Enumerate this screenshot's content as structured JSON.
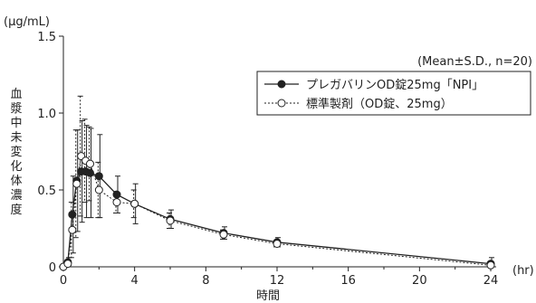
{
  "chart_data": {
    "type": "line",
    "ylabel": "血漿中未変化体濃度",
    "yunit": "(μg/mL)",
    "xlabel": "時間",
    "xunit": "(hr)",
    "xlim": [
      0,
      24
    ],
    "ylim": [
      0,
      1.5
    ],
    "xticks": [
      0,
      4,
      8,
      12,
      16,
      20,
      24
    ],
    "xtick_labels": [
      "0",
      "4",
      "8",
      "12",
      "16",
      "20",
      "24"
    ],
    "yticks": [
      0,
      0.5,
      1.0,
      1.5
    ],
    "ytick_labels": [
      "0",
      "0.5",
      "1.0",
      "1.5"
    ],
    "note": "(Mean±S.D., n=20)",
    "legend_position": "top-right",
    "series": [
      {
        "name": "プレガバリンOD錠25mg「NPI」",
        "style": "solid-filled",
        "color": "#222222",
        "x": [
          0,
          0.25,
          0.5,
          0.75,
          1,
          1.25,
          1.5,
          2,
          3,
          4,
          6,
          9,
          12,
          24
        ],
        "y": [
          0.0,
          0.03,
          0.34,
          0.56,
          0.62,
          0.62,
          0.61,
          0.59,
          0.47,
          0.41,
          0.31,
          0.22,
          0.16,
          0.02
        ],
        "sd": [
          0.0,
          0.03,
          0.25,
          0.33,
          0.33,
          0.3,
          0.29,
          0.27,
          0.12,
          0.13,
          0.06,
          0.04,
          0.03,
          0.04
        ]
      },
      {
        "name": "標準製剤（OD錠、25mg）",
        "style": "dashed-open",
        "color": "#222222",
        "x": [
          0,
          0.25,
          0.5,
          0.75,
          1,
          1.25,
          1.5,
          2,
          3,
          4,
          6,
          9,
          12,
          24
        ],
        "y": [
          0.0,
          0.02,
          0.24,
          0.54,
          0.72,
          0.69,
          0.67,
          0.5,
          0.42,
          0.41,
          0.3,
          0.21,
          0.15,
          0.01
        ],
        "sd": [
          0.0,
          0.02,
          0.18,
          0.35,
          0.39,
          0.27,
          0.24,
          0.18,
          0.07,
          0.09,
          0.05,
          0.03,
          0.02,
          0.02
        ]
      }
    ]
  }
}
